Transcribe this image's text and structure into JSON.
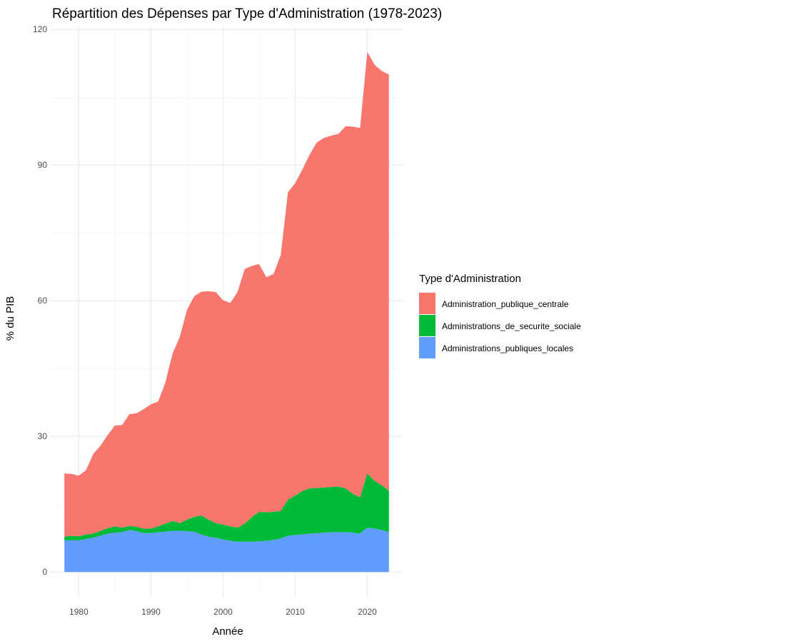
{
  "chart_data": {
    "type": "area",
    "stacked": true,
    "title": "Répartition des Dépenses par Type d'Administration (1978-2023)",
    "xlabel": "Année",
    "ylabel": "% du PIB",
    "x_ticks": [
      1980,
      1990,
      2000,
      2010,
      2020
    ],
    "y_ticks": [
      0,
      30,
      60,
      90,
      120
    ],
    "xlim": [
      1976,
      2025
    ],
    "ylim": [
      -5.5,
      120.5
    ],
    "grid": true,
    "legend": {
      "title": "Type d'Administration",
      "position": "right"
    },
    "x": [
      1978,
      1979,
      1980,
      1981,
      1982,
      1983,
      1984,
      1985,
      1986,
      1987,
      1988,
      1989,
      1990,
      1991,
      1992,
      1993,
      1994,
      1995,
      1996,
      1997,
      1998,
      1999,
      2000,
      2001,
      2002,
      2003,
      2004,
      2005,
      2006,
      2007,
      2008,
      2009,
      2010,
      2011,
      2012,
      2013,
      2014,
      2015,
      2016,
      2017,
      2018,
      2019,
      2020,
      2021,
      2022,
      2023
    ],
    "series": [
      {
        "name": "Administrations_publiques_locales",
        "color": "#619CFF",
        "values": [
          7.0,
          7.0,
          7.0,
          7.3,
          7.6,
          8.0,
          8.5,
          8.7,
          8.8,
          9.3,
          9.0,
          8.6,
          8.6,
          8.8,
          8.9,
          9.1,
          9.1,
          9.0,
          8.9,
          8.3,
          7.8,
          7.6,
          7.2,
          6.9,
          6.7,
          6.7,
          6.7,
          6.8,
          6.9,
          7.1,
          7.4,
          8.0,
          8.2,
          8.3,
          8.5,
          8.6,
          8.7,
          8.8,
          8.8,
          8.8,
          8.7,
          8.5,
          9.8,
          9.6,
          9.3,
          8.8
        ]
      },
      {
        "name": "Administrations_de_securite_sociale",
        "color": "#00BA38",
        "values": [
          0.8,
          1.0,
          0.9,
          1.0,
          0.9,
          1.1,
          1.2,
          1.4,
          1.0,
          0.9,
          1.0,
          1.0,
          1.0,
          1.3,
          1.8,
          2.2,
          1.7,
          2.6,
          3.3,
          4.2,
          3.8,
          3.2,
          3.3,
          3.2,
          3.1,
          4.0,
          5.5,
          6.5,
          6.3,
          6.2,
          6.1,
          8.0,
          8.7,
          9.6,
          10.0,
          10.0,
          10.0,
          10.0,
          10.1,
          9.7,
          8.6,
          8.0,
          12.0,
          10.6,
          9.9,
          9.2
        ]
      },
      {
        "name": "Administration_publique_centrale",
        "color": "#F8766D",
        "values": [
          14.0,
          13.7,
          13.4,
          14.2,
          17.6,
          18.8,
          20.6,
          22.3,
          22.7,
          24.7,
          25.1,
          26.4,
          27.5,
          27.6,
          31.2,
          37.0,
          41.2,
          46.4,
          48.8,
          49.5,
          50.5,
          51.1,
          49.6,
          49.4,
          52.1,
          56.3,
          55.5,
          54.8,
          52.0,
          52.6,
          56.6,
          68.0,
          69.1,
          71.1,
          73.8,
          76.4,
          77.3,
          77.7,
          78.0,
          80.1,
          81.2,
          81.7,
          93.2,
          92.0,
          91.6,
          92.0
        ]
      }
    ]
  }
}
